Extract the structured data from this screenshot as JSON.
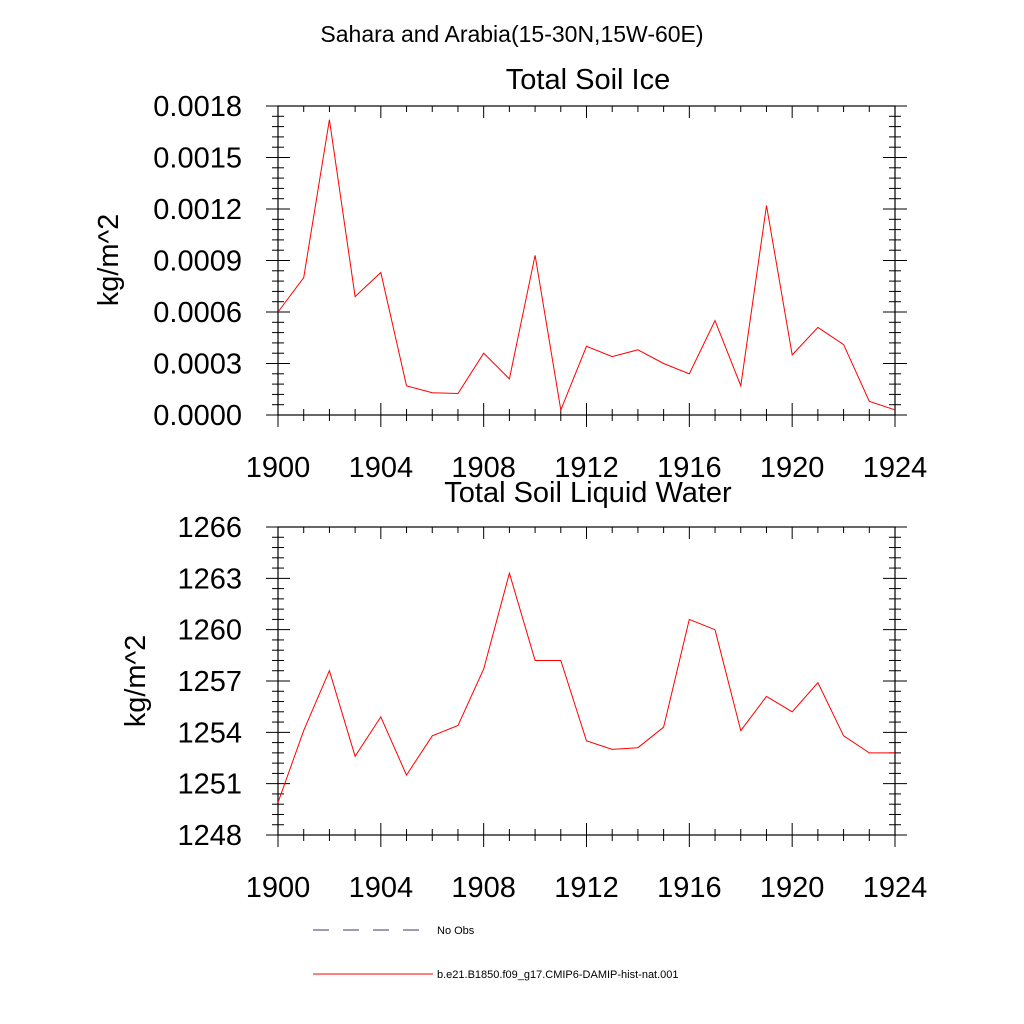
{
  "figure": {
    "suptitle": "Sahara and Arabia(15-30N,15W-60E)"
  },
  "legend": [
    {
      "label": "No Obs",
      "color": "#3a3a6a",
      "style": "dashed"
    },
    {
      "label": "b.e21.B1850.f09_g17.CMIP6-DAMIP-hist-nat.001",
      "color": "#ff0000",
      "style": "solid"
    }
  ],
  "chart_data": [
    {
      "type": "line",
      "title": "Total Soil Ice",
      "xlabel": "",
      "ylabel": "kg/m^2",
      "xlim": [
        1900,
        1924
      ],
      "ylim": [
        0,
        0.0018
      ],
      "xticks": [
        1900,
        1904,
        1908,
        1912,
        1916,
        1920,
        1924
      ],
      "xtick_labels": [
        "1900",
        "1904",
        "1908",
        "1912",
        "1916",
        "1920",
        "1924"
      ],
      "yticks": [
        0,
        0.0003,
        0.0006,
        0.0009,
        0.0012,
        0.0015,
        0.0018
      ],
      "ytick_labels": [
        "0.0000",
        "0.0003",
        "0.0006",
        "0.0009",
        "0.0012",
        "0.0015",
        "0.0018"
      ],
      "grid": false,
      "series": [
        {
          "color": "#ff0000",
          "x": [
            1900,
            1901,
            1902,
            1903,
            1904,
            1905,
            1906,
            1907,
            1908,
            1909,
            1910,
            1911,
            1912,
            1913,
            1914,
            1915,
            1916,
            1917,
            1918,
            1919,
            1920,
            1921,
            1922,
            1923,
            1924
          ],
          "y": [
            0.0006,
            0.0008,
            0.00172,
            0.00069,
            0.00083,
            0.00017,
            0.00013,
            0.000125,
            0.00036,
            0.00021,
            0.00093,
            3e-05,
            0.0004,
            0.00034,
            0.00038,
            0.0003,
            0.00024,
            0.00055,
            0.00017,
            0.00122,
            0.00035,
            0.00051,
            0.00041,
            8e-05,
            3e-05
          ]
        }
      ]
    },
    {
      "type": "line",
      "title": "Total Soil Liquid Water",
      "xlabel": "",
      "ylabel": "kg/m^2",
      "xlim": [
        1900,
        1924
      ],
      "ylim": [
        1248,
        1266
      ],
      "xticks": [
        1900,
        1904,
        1908,
        1912,
        1916,
        1920,
        1924
      ],
      "xtick_labels": [
        "1900",
        "1904",
        "1908",
        "1912",
        "1916",
        "1920",
        "1924"
      ],
      "yticks": [
        1248,
        1251,
        1254,
        1257,
        1260,
        1263,
        1266
      ],
      "ytick_labels": [
        "1248",
        "1251",
        "1254",
        "1257",
        "1260",
        "1263",
        "1266"
      ],
      "grid": false,
      "series": [
        {
          "color": "#ff0000",
          "x": [
            1900,
            1901,
            1902,
            1903,
            1904,
            1905,
            1906,
            1907,
            1908,
            1909,
            1910,
            1911,
            1912,
            1913,
            1914,
            1915,
            1916,
            1917,
            1918,
            1919,
            1920,
            1921,
            1922,
            1923,
            1924
          ],
          "y": [
            1249.9,
            1254.1,
            1257.6,
            1252.6,
            1254.9,
            1251.5,
            1253.8,
            1254.4,
            1257.7,
            1263.3,
            1258.2,
            1258.2,
            1253.5,
            1253.0,
            1253.1,
            1254.3,
            1260.6,
            1260.0,
            1254.1,
            1256.1,
            1255.2,
            1256.9,
            1253.8,
            1252.8,
            1252.8
          ]
        }
      ]
    }
  ]
}
